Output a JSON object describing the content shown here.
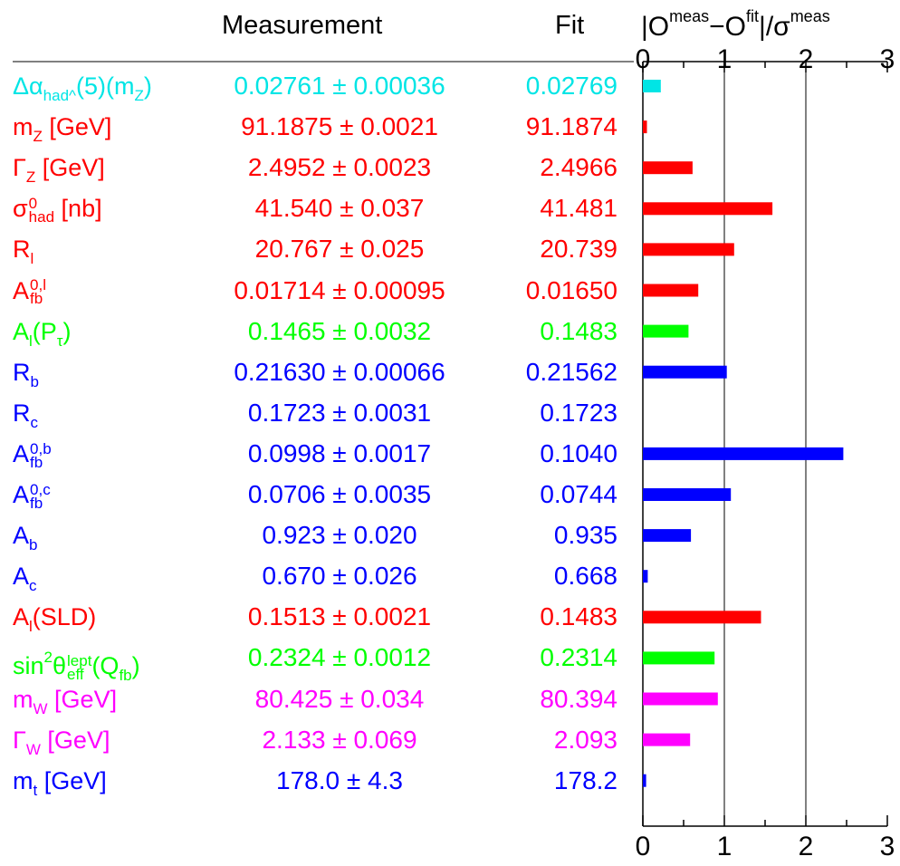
{
  "headers": {
    "measurement": "Measurement",
    "fit": "Fit",
    "pull_o": "|O",
    "pull_meas_sup": "meas",
    "pull_minus_o": "−O",
    "pull_fit_sup": "fit",
    "pull_sigma": "|/σ",
    "pull_sigma_sup": "meas"
  },
  "chart_data": {
    "type": "bar",
    "orientation": "horizontal",
    "xlim": [
      0,
      3
    ],
    "x_ticks": [
      "0",
      "1",
      "2",
      "3"
    ],
    "grid": true,
    "rows": [
      {
        "name": "Δα_had^(5)(m_Z)",
        "measurement": "0.02761 ± 0.00036",
        "fit": "0.02769",
        "pull": 0.22,
        "color": "#00e5e5"
      },
      {
        "name": "m_Z [GeV]",
        "measurement": "91.1875 ± 0.0021",
        "fit": "91.1874",
        "pull": 0.05,
        "color": "#ff0000"
      },
      {
        "name": "Γ_Z [GeV]",
        "measurement": "2.4952 ± 0.0023",
        "fit": "2.4966",
        "pull": 0.61,
        "color": "#ff0000"
      },
      {
        "name": "σ_had^0 [nb]",
        "measurement": "41.540 ± 0.037",
        "fit": "41.481",
        "pull": 1.59,
        "color": "#ff0000"
      },
      {
        "name": "R_l",
        "measurement": "20.767 ± 0.025",
        "fit": "20.739",
        "pull": 1.12,
        "color": "#ff0000"
      },
      {
        "name": "A_fb^0,l",
        "measurement": "0.01714 ± 0.00095",
        "fit": "0.01650",
        "pull": 0.68,
        "color": "#ff0000"
      },
      {
        "name": "A_l(P_τ)",
        "measurement": "0.1465 ± 0.0032",
        "fit": "0.1483",
        "pull": 0.56,
        "color": "#00ff00"
      },
      {
        "name": "R_b",
        "measurement": "0.21630 ± 0.00066",
        "fit": "0.21562",
        "pull": 1.03,
        "color": "#0000ff"
      },
      {
        "name": "R_c",
        "measurement": "0.1723 ± 0.0031",
        "fit": "0.1723",
        "pull": 0.0,
        "color": "#0000ff"
      },
      {
        "name": "A_fb^0,b",
        "measurement": "0.0998 ± 0.0017",
        "fit": "0.1040",
        "pull": 2.46,
        "color": "#0000ff"
      },
      {
        "name": "A_fb^0,c",
        "measurement": "0.0706 ± 0.0035",
        "fit": "0.0744",
        "pull": 1.08,
        "color": "#0000ff"
      },
      {
        "name": "A_b",
        "measurement": "0.923 ± 0.020",
        "fit": "0.935",
        "pull": 0.59,
        "color": "#0000ff"
      },
      {
        "name": "A_c",
        "measurement": "0.670 ± 0.026",
        "fit": "0.668",
        "pull": 0.06,
        "color": "#0000ff"
      },
      {
        "name": "A_l(SLD)",
        "measurement": "0.1513 ± 0.0021",
        "fit": "0.1483",
        "pull": 1.45,
        "color": "#ff0000"
      },
      {
        "name": "sin²θ_eff^lept(Q_fb)",
        "measurement": "0.2324 ± 0.0012",
        "fit": "0.2314",
        "pull": 0.88,
        "color": "#00ff00"
      },
      {
        "name": "m_W [GeV]",
        "measurement": "80.425 ± 0.034",
        "fit": "80.394",
        "pull": 0.92,
        "color": "#ff00ff"
      },
      {
        "name": "Γ_W [GeV]",
        "measurement": "2.133 ± 0.069",
        "fit": "2.093",
        "pull": 0.58,
        "color": "#ff00ff"
      },
      {
        "name": "m_t [GeV]",
        "measurement": "178.0 ± 4.3",
        "fit": "178.2",
        "pull": 0.04,
        "color": "#0000ff"
      }
    ]
  }
}
